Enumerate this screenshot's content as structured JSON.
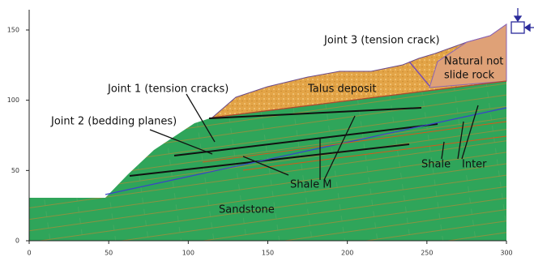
{
  "axes": {
    "xticks": [
      0,
      50,
      100,
      150,
      200,
      250,
      300
    ],
    "yticks": [
      0,
      50,
      100,
      150
    ]
  },
  "annotations": [
    "Joint 3 (tension crack)",
    "Natural not",
    "slide rock",
    "Talus deposit",
    "Joint 1 (tension cracks)",
    "Joint 2 (bedding planes)",
    "Shale M",
    "Shale",
    "Inter",
    "Sandstone"
  ]
}
